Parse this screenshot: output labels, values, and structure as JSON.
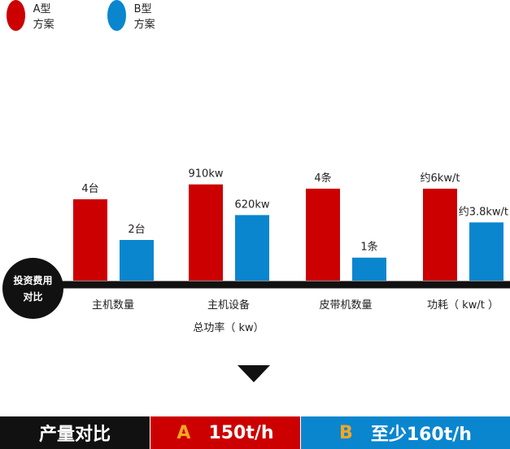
{
  "legend": [
    {
      "label": "A型方案",
      "color": "#cc0000"
    },
    {
      "label": "B型方案",
      "color": "#0a86cf"
    }
  ],
  "badge": {
    "line1": "投资费用",
    "line2": "对比"
  },
  "chart_data": {
    "type": "bar",
    "categories": [
      {
        "line1": "主机数量",
        "line2": ""
      },
      {
        "line1": "主机设备",
        "line2": "总功率（ kw）"
      },
      {
        "line1": "皮带机数量",
        "line2": ""
      },
      {
        "line1": "功耗（ kw/t ）",
        "line2": ""
      }
    ],
    "series": [
      {
        "name": "A型方案",
        "color": "#cc0000",
        "values": [
          4,
          910,
          4,
          6
        ],
        "labels": [
          "4台",
          "910kw",
          "4条",
          "约6kw/t"
        ]
      },
      {
        "name": "B型方案",
        "color": "#0a86cf",
        "values": [
          2,
          620,
          1,
          3.8
        ],
        "labels": [
          "2台",
          "620kw",
          "1条",
          "约3.8kw/t"
        ]
      }
    ],
    "ylim_per_category": [
      [
        0,
        5.2
      ],
      [
        0,
        1000
      ],
      [
        0,
        4.6
      ],
      [
        0,
        6.9
      ]
    ],
    "grid": false,
    "legend_position": "top-left"
  },
  "footer": {
    "title": "产量对比",
    "a_letter": "A",
    "a_value": "150t/h",
    "b_letter": "B",
    "b_value": "至少160t/h"
  }
}
